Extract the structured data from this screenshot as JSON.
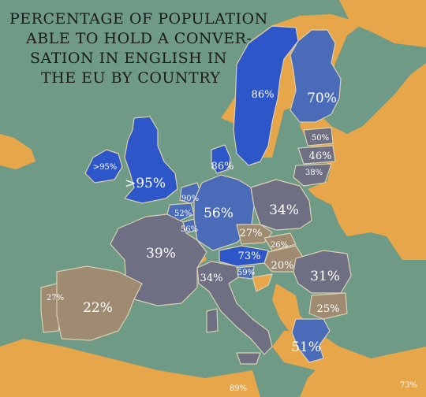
{
  "title_lines": [
    "PERCENTAGE OF POPULATION",
    "ABLE TO HOLD A CONVER-",
    "SATION IN ENGLISH IN",
    "THE EU BY COUNTRY"
  ],
  "colors": {
    "sea": "#6f9a86",
    "non_eu": "#e8a64a",
    "bin_highest": "#2d56c8",
    "bin_high": "#4a6cb8",
    "bin_mid": "#6f6f84",
    "bin_low": "#9e8b72",
    "border": "#d9cfb0",
    "label": "#ffffff"
  },
  "legend_note": "",
  "countries": [
    {
      "id": "sweden",
      "label": "86%"
    },
    {
      "id": "finland",
      "label": "70%"
    },
    {
      "id": "ireland",
      "label": ">95%"
    },
    {
      "id": "united-kingdom",
      "label": ">95%"
    },
    {
      "id": "denmark",
      "label": "86%"
    },
    {
      "id": "estonia",
      "label": "50%"
    },
    {
      "id": "latvia",
      "label": "46%"
    },
    {
      "id": "lithuania",
      "label": "38%"
    },
    {
      "id": "netherlands",
      "label": "90%"
    },
    {
      "id": "belgium",
      "label": "52%"
    },
    {
      "id": "luxembourg",
      "label": "56%"
    },
    {
      "id": "germany",
      "label": "56%"
    },
    {
      "id": "poland",
      "label": "34%"
    },
    {
      "id": "czechia",
      "label": "27%"
    },
    {
      "id": "slovakia",
      "label": "26%"
    },
    {
      "id": "austria",
      "label": "73%"
    },
    {
      "id": "hungary",
      "label": "20%"
    },
    {
      "id": "slovenia",
      "label": "59%"
    },
    {
      "id": "france",
      "label": "39%"
    },
    {
      "id": "italy",
      "label": "34%"
    },
    {
      "id": "romania",
      "label": "31%"
    },
    {
      "id": "bulgaria",
      "label": "25%"
    },
    {
      "id": "portugal",
      "label": "27%"
    },
    {
      "id": "spain",
      "label": "22%"
    },
    {
      "id": "greece",
      "label": "51%"
    },
    {
      "id": "malta",
      "label": "89%"
    },
    {
      "id": "cyprus",
      "label": "73%"
    }
  ]
}
